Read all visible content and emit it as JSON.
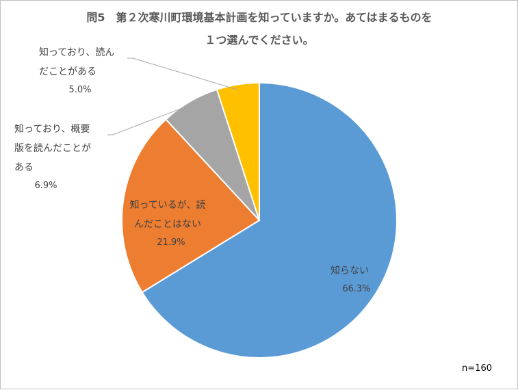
{
  "chart_data": {
    "type": "pie",
    "title_lines": [
      "問5　第２次寒川町環境基本計画を知っていますか。あてはまるものを",
      "１つ選んでください。"
    ],
    "start_angle_deg": 0,
    "direction": "clockwise",
    "slices": [
      {
        "label_lines": [
          "知らない"
        ],
        "value": 66.3,
        "value_label": "66.3%",
        "color": "#5b9bd5"
      },
      {
        "label_lines": [
          "知っているが、読",
          "んだことはない"
        ],
        "value": 21.9,
        "value_label": "21.9%",
        "color": "#ed7d31"
      },
      {
        "label_lines": [
          "知っており、概要",
          "版を読んだことが",
          "ある"
        ],
        "value": 6.9,
        "value_label": "6.9%",
        "color": "#a5a5a5"
      },
      {
        "label_lines": [
          "知っており、読ん",
          "だことがある"
        ],
        "value": 5.0,
        "value_label": "5.0%",
        "color": "#ffc000"
      }
    ],
    "note": "n=160",
    "legend": "none"
  }
}
